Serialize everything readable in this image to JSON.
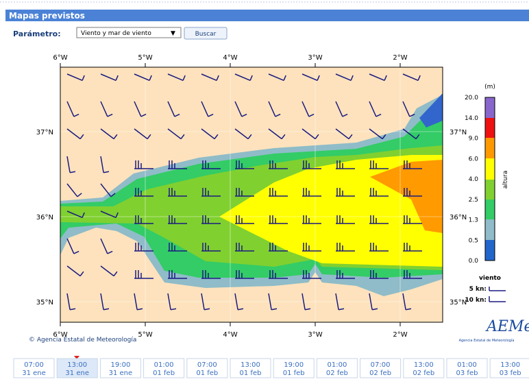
{
  "header": {
    "title": "Mapas previstos"
  },
  "form": {
    "label": "Parámetro:",
    "select": "Viento y mar de viento",
    "button": "Buscar"
  },
  "map": {
    "lon_labels": [
      "6°W",
      "5°W",
      "4°W",
      "3°W",
      "2°W"
    ],
    "lat_labels": [
      "37°N",
      "36°N",
      "35°N"
    ],
    "credit": "© Agencia Estatal de Meteorología"
  },
  "legend": {
    "unit": "(m)",
    "title": "altura",
    "levels": [
      "20.0",
      "14.0",
      "9.0",
      "6.0",
      "4.0",
      "2.5",
      "1.3",
      "0.5",
      "0.0"
    ],
    "wind_title": "viento",
    "wind_items": [
      "5 kn:",
      "10 kn:"
    ]
  },
  "logo": {
    "name": "AEMet",
    "subtitle": "Agencia Estatal de Meteorología"
  },
  "timeline": [
    {
      "time": "07:00",
      "date": "31 ene"
    },
    {
      "time": "13:00",
      "date": "31 ene"
    },
    {
      "time": "19:00",
      "date": "31 ene"
    },
    {
      "time": "01:00",
      "date": "01 feb"
    },
    {
      "time": "07:00",
      "date": "01 feb"
    },
    {
      "time": "13:00",
      "date": "01 feb"
    },
    {
      "time": "19:00",
      "date": "01 feb"
    },
    {
      "time": "01:00",
      "date": "02 feb"
    },
    {
      "time": "07:00",
      "date": "02 feb"
    },
    {
      "time": "13:00",
      "date": "02 feb"
    },
    {
      "time": "01:00",
      "date": "03 feb"
    },
    {
      "time": "13:00",
      "date": "03 feb"
    }
  ]
}
